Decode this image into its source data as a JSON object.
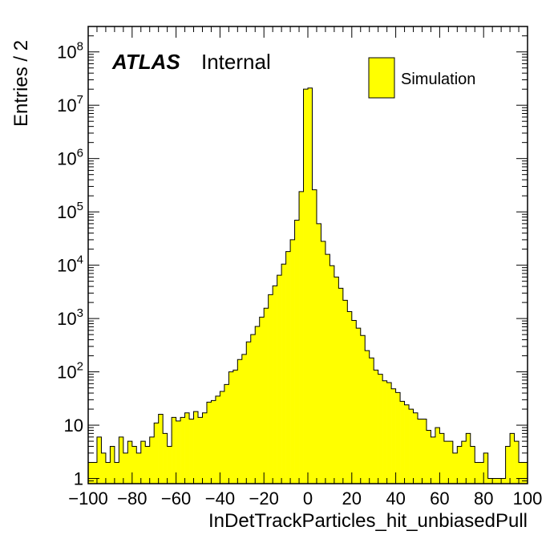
{
  "chart_data": {
    "type": "bar",
    "histogram": true,
    "xlabel": "InDetTrackParticles_hit_unbiasedPull",
    "ylabel": "Entries / 2",
    "xlim": [
      -100,
      100
    ],
    "ylim": [
      0.8,
      300000000
    ],
    "y_scale": "log",
    "bin_width": 2,
    "grid": false,
    "legend_position": "top-right",
    "fill_color": "#ffff00",
    "edge_color": "#000000",
    "labels": {
      "experiment": "ATLAS",
      "status": "Internal"
    },
    "x_ticks": [
      "−100",
      "−80",
      "−60",
      "−40",
      "−20",
      "0",
      "20",
      "40",
      "60",
      "80",
      "100"
    ],
    "y_ticks": [
      {
        "value": 1,
        "base": "1",
        "exp": ""
      },
      {
        "value": 10,
        "base": "10",
        "exp": ""
      },
      {
        "value": 100,
        "base": "10",
        "exp": "2"
      },
      {
        "value": 1000,
        "base": "10",
        "exp": "3"
      },
      {
        "value": 10000,
        "base": "10",
        "exp": "4"
      },
      {
        "value": 100000,
        "base": "10",
        "exp": "5"
      },
      {
        "value": 1000000,
        "base": "10",
        "exp": "6"
      },
      {
        "value": 10000000,
        "base": "10",
        "exp": "7"
      },
      {
        "value": 100000000,
        "base": "10",
        "exp": "8"
      }
    ],
    "series": [
      {
        "name": "Simulation",
        "bin_centers": [
          -99,
          -97,
          -95,
          -93,
          -91,
          -89,
          -87,
          -85,
          -83,
          -81,
          -79,
          -77,
          -75,
          -73,
          -71,
          -69,
          -67,
          -65,
          -63,
          -61,
          -59,
          -57,
          -55,
          -53,
          -51,
          -49,
          -47,
          -45,
          -43,
          -41,
          -39,
          -37,
          -35,
          -33,
          -31,
          -29,
          -27,
          -25,
          -23,
          -21,
          -19,
          -17,
          -15,
          -13,
          -11,
          -9,
          -7,
          -5,
          -3,
          -1,
          1,
          3,
          5,
          7,
          9,
          11,
          13,
          15,
          17,
          19,
          21,
          23,
          25,
          27,
          29,
          31,
          33,
          35,
          37,
          39,
          41,
          43,
          45,
          47,
          49,
          51,
          53,
          55,
          57,
          59,
          61,
          63,
          65,
          67,
          69,
          71,
          73,
          75,
          77,
          79,
          81,
          83,
          85,
          87,
          89,
          91,
          93,
          95,
          97,
          99
        ],
        "values": [
          2,
          2,
          6,
          3,
          2,
          4,
          2,
          6,
          3,
          5,
          4,
          3,
          5,
          4,
          6,
          11,
          16,
          7,
          4,
          14,
          12,
          14,
          17,
          13,
          18,
          14,
          17,
          27,
          29,
          35,
          43,
          58,
          100,
          108,
          170,
          212,
          365,
          500,
          710,
          1060,
          1560,
          2800,
          4100,
          6500,
          10500,
          18000,
          30000,
          70000,
          240000,
          20000000,
          21000000,
          260000,
          60000,
          28000,
          16000,
          9800,
          6000,
          3700,
          2200,
          1350,
          920,
          660,
          480,
          250,
          182,
          108,
          90,
          68,
          63,
          48,
          41,
          28,
          24,
          20,
          17,
          13,
          13,
          8,
          6,
          9,
          7,
          5,
          5,
          3,
          4,
          5,
          7,
          4,
          2,
          2,
          3,
          1,
          1,
          1,
          1,
          4,
          7,
          5,
          2,
          2
        ]
      }
    ]
  }
}
